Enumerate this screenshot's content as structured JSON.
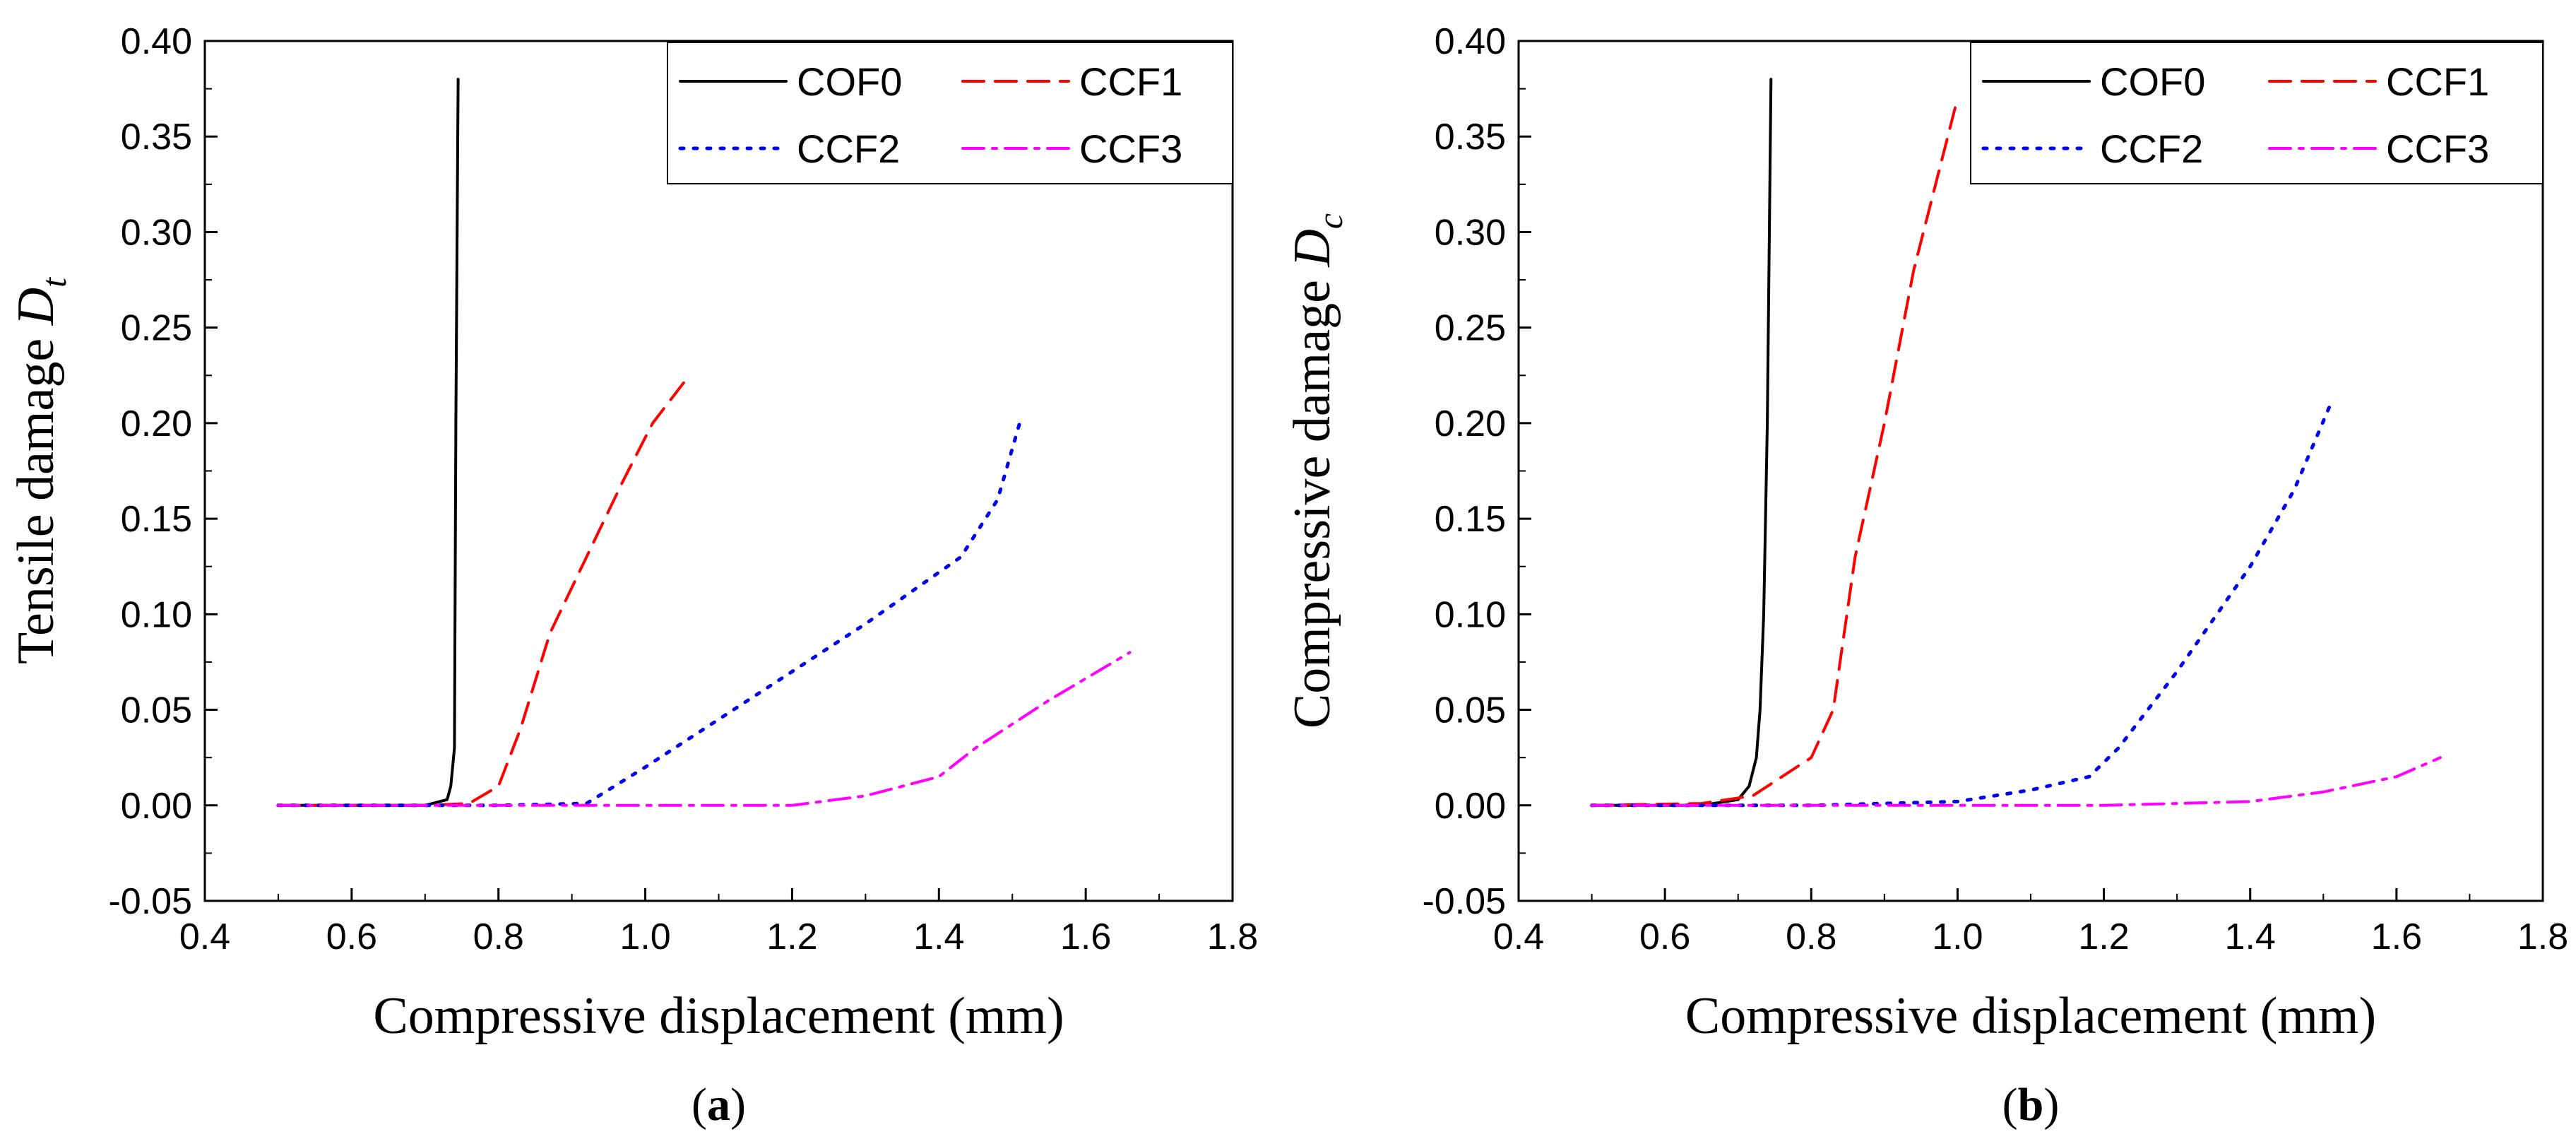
{
  "chart_data": [
    {
      "type": "line",
      "panel_label": "(a)",
      "xlabel": "Compressive displacement (mm)",
      "ylabel": "Tensile damage D",
      "ylabel_subscript": "t",
      "xlim": [
        0.4,
        1.8
      ],
      "ylim": [
        -0.05,
        0.4
      ],
      "x_ticks": [
        0.4,
        0.6,
        0.8,
        1.0,
        1.2,
        1.4,
        1.6,
        1.8
      ],
      "x_tick_labels": [
        "0.4",
        "0.6",
        "0.8",
        "1.0",
        "1.2",
        "1.4",
        "1.6",
        "1.8"
      ],
      "y_ticks": [
        -0.05,
        0.0,
        0.05,
        0.1,
        0.15,
        0.2,
        0.25,
        0.3,
        0.35,
        0.4
      ],
      "y_tick_labels": [
        "-0.05",
        "0.00",
        "0.05",
        "0.10",
        "0.15",
        "0.20",
        "0.25",
        "0.30",
        "0.35",
        "0.40"
      ],
      "legend_position": "top-right",
      "series": [
        {
          "name": "COF0",
          "color": "#000000",
          "style": "solid",
          "x": [
            0.5,
            0.6,
            0.7,
            0.73,
            0.735,
            0.74,
            0.742,
            0.745
          ],
          "y": [
            0,
            0,
            0,
            0.003,
            0.01,
            0.03,
            0.2,
            0.38
          ]
        },
        {
          "name": "CCF1",
          "color": "#ff0000",
          "style": "dashed",
          "x": [
            0.5,
            0.7,
            0.76,
            0.8,
            0.83,
            0.87,
            0.92,
            0.97,
            1.01,
            1.06
          ],
          "y": [
            0,
            0,
            0.001,
            0.01,
            0.04,
            0.09,
            0.13,
            0.17,
            0.2,
            0.225
          ]
        },
        {
          "name": "CCF2",
          "color": "#0000ee",
          "style": "dotted",
          "x": [
            0.5,
            0.8,
            0.92,
            1.0,
            1.1,
            1.2,
            1.3,
            1.43,
            1.48,
            1.51
          ],
          "y": [
            0,
            0,
            0.001,
            0.02,
            0.045,
            0.07,
            0.095,
            0.13,
            0.16,
            0.2
          ]
        },
        {
          "name": "CCF3",
          "color": "#ff00ff",
          "style": "dashdot",
          "x": [
            0.5,
            0.8,
            1.0,
            1.2,
            1.3,
            1.4,
            1.45,
            1.55,
            1.66
          ],
          "y": [
            0,
            0,
            0,
            0,
            0.005,
            0.015,
            0.03,
            0.055,
            0.08
          ]
        }
      ]
    },
    {
      "type": "line",
      "panel_label": "(b)",
      "xlabel": "Compressive displacement (mm)",
      "ylabel": "Compressive damage D",
      "ylabel_subscript": "c",
      "xlim": [
        0.4,
        1.8
      ],
      "ylim": [
        -0.05,
        0.4
      ],
      "x_ticks": [
        0.4,
        0.6,
        0.8,
        1.0,
        1.2,
        1.4,
        1.6,
        1.8
      ],
      "x_tick_labels": [
        "0.4",
        "0.6",
        "0.8",
        "1.0",
        "1.2",
        "1.4",
        "1.6",
        "1.8"
      ],
      "y_ticks": [
        -0.05,
        0.0,
        0.05,
        0.1,
        0.15,
        0.2,
        0.25,
        0.3,
        0.35,
        0.4
      ],
      "y_tick_labels": [
        "-0.05",
        "0.00",
        "0.05",
        "0.10",
        "0.15",
        "0.20",
        "0.25",
        "0.30",
        "0.35",
        "0.40"
      ],
      "legend_position": "top-right",
      "series": [
        {
          "name": "COF0",
          "color": "#000000",
          "style": "solid",
          "x": [
            0.5,
            0.65,
            0.7,
            0.715,
            0.725,
            0.73,
            0.735,
            0.74,
            0.745
          ],
          "y": [
            0,
            0,
            0.003,
            0.01,
            0.025,
            0.05,
            0.1,
            0.2,
            0.38
          ]
        },
        {
          "name": "CCF1",
          "color": "#ff0000",
          "style": "dashed",
          "x": [
            0.5,
            0.65,
            0.72,
            0.76,
            0.8,
            0.83,
            0.86,
            0.9,
            0.94,
            0.98,
            1.0
          ],
          "y": [
            0,
            0.001,
            0.005,
            0.015,
            0.025,
            0.05,
            0.13,
            0.2,
            0.28,
            0.34,
            0.37
          ]
        },
        {
          "name": "CCF2",
          "color": "#0000ee",
          "style": "dotted",
          "x": [
            0.5,
            0.8,
            1.0,
            1.1,
            1.18,
            1.22,
            1.3,
            1.4,
            1.46,
            1.51
          ],
          "y": [
            0,
            0,
            0.002,
            0.008,
            0.015,
            0.03,
            0.07,
            0.125,
            0.165,
            0.21
          ]
        },
        {
          "name": "CCF3",
          "color": "#ff00ff",
          "style": "dashdot",
          "x": [
            0.5,
            0.8,
            1.0,
            1.2,
            1.4,
            1.5,
            1.6,
            1.66
          ],
          "y": [
            0,
            0,
            0,
            0,
            0.002,
            0.007,
            0.015,
            0.025
          ]
        }
      ]
    }
  ]
}
